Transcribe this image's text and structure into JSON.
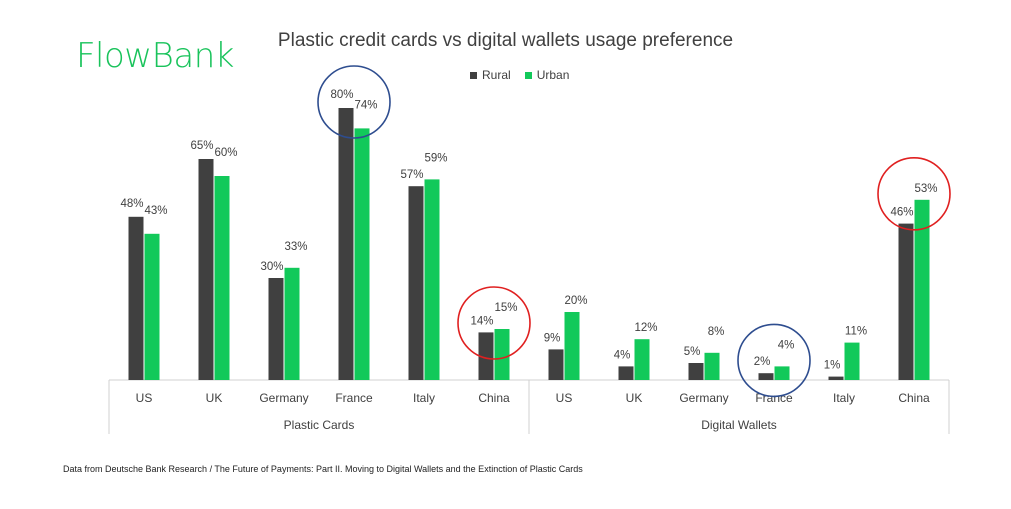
{
  "logo": {
    "text": "FlowBank"
  },
  "chart_data": {
    "type": "bar",
    "title": "Plastic credit cards vs digital wallets usage preference",
    "groups": [
      {
        "name": "Plastic Cards",
        "categories": [
          "US",
          "UK",
          "Germany",
          "France",
          "Italy",
          "China"
        ]
      },
      {
        "name": "Digital Wallets",
        "categories": [
          "US",
          "UK",
          "Germany",
          "France",
          "Italy",
          "China"
        ]
      }
    ],
    "series": [
      {
        "name": "Rural",
        "color": "#404040",
        "values": [
          48,
          65,
          30,
          80,
          57,
          14,
          9,
          4,
          5,
          2,
          1,
          46
        ]
      },
      {
        "name": "Urban",
        "color": "#12c95a",
        "values": [
          43,
          60,
          33,
          74,
          59,
          15,
          20,
          12,
          8,
          4,
          11,
          53
        ]
      }
    ],
    "data_labels": {
      "Rural": [
        "48%",
        "65%",
        "30%",
        "80%",
        "57%",
        "14%",
        "9%",
        "4%",
        "5%",
        "2%",
        "1%",
        "46%"
      ],
      "Urban": [
        "43%",
        "60%",
        "33%",
        "74%",
        "59%",
        "15%",
        "20%",
        "12%",
        "8%",
        "4%",
        "11%",
        "53%"
      ]
    },
    "ylim": [
      0,
      100
    ],
    "legend_position": "top-center",
    "grid": false,
    "annotations": [
      {
        "type": "circle",
        "color": "#2e4d8f",
        "category_index": 3
      },
      {
        "type": "circle",
        "color": "#e02020",
        "category_index": 5
      },
      {
        "type": "circle",
        "color": "#2e4d8f",
        "category_index": 9
      },
      {
        "type": "circle",
        "color": "#e02020",
        "category_index": 11
      }
    ]
  },
  "footnote": "Data from Deutsche Bank Research / The Future of Payments: Part II. Moving to Digital Wallets and the Extinction of Plastic Cards"
}
